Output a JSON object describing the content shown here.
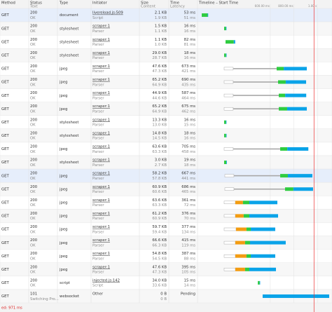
{
  "header": {
    "method": "Method",
    "status": "Status",
    "status_sub": "Text",
    "type": "Type",
    "initiator": "Initiator",
    "size": "Size",
    "size_sub": "Content",
    "time": "Time",
    "time_sub": "Latency",
    "timeline": "Timeline – Start Time"
  },
  "timeline": {
    "xlim": [
      0,
      1100
    ],
    "xticks": [
      {
        "value": 600,
        "label": "600.00 ms"
      },
      {
        "value": 800,
        "label": "800.00 ms"
      },
      {
        "value": 1000,
        "label": "1.00 s"
      }
    ],
    "colors": [
      "#ffffff",
      "#a8a8a8",
      "#f39c12",
      "#2ecc40",
      "#0aa3e8"
    ],
    "load_time": 971
  },
  "rows": [
    {
      "method": "GET",
      "status": "200",
      "text": "OK",
      "type": "document",
      "initiator": "livereload.js:509",
      "initiator_sub": "Script",
      "size": "2.1 KB",
      "content": "1.9 KB",
      "time": "53 ms",
      "latency": "51 ms",
      "timing": [
        18,
        0,
        0,
        0,
        50,
        3
      ],
      "selected": true
    },
    {
      "method": "GET",
      "status": "200",
      "text": "OK",
      "type": "stylesheet",
      "initiator": "scraper:1",
      "initiator_sub": "Parser",
      "size": "1.5 KB",
      "content": "1.1 KB",
      "time": "16 ms",
      "latency": "16 ms",
      "timing": [
        208,
        0,
        0,
        0,
        15,
        1
      ]
    },
    {
      "method": "GET",
      "status": "200",
      "text": "OK",
      "type": "stylesheet",
      "initiator": "scraper:1",
      "initiator_sub": "Parser",
      "size": "1.1 KB",
      "content": "1.0 KB",
      "time": "82 ms",
      "latency": "81 ms",
      "timing": [
        220,
        0,
        0,
        0,
        70,
        12
      ]
    },
    {
      "method": "GET",
      "status": "200",
      "text": "OK",
      "type": "stylesheet",
      "initiator": "scraper:1",
      "initiator_sub": "Parser",
      "size": "29.0 KB",
      "content": "28.7 KB",
      "time": "18 ms",
      "latency": "16 ms",
      "timing": [
        208,
        0,
        0,
        0,
        16,
        2
      ]
    },
    {
      "method": "GET",
      "status": "200",
      "text": "OK",
      "type": "jpeg",
      "initiator": "scraper:1",
      "initiator_sub": "Parser",
      "size": "47.6 KB",
      "content": "47.3 KB",
      "time": "673 ms",
      "latency": "421 ms",
      "timing": [
        208,
        77,
        369,
        0,
        60,
        196
      ]
    },
    {
      "method": "GET",
      "status": "200",
      "text": "OK",
      "type": "jpeg",
      "initiator": "scraper:1",
      "initiator_sub": "Parser",
      "size": "65.2 KB",
      "content": "64.9 KB",
      "time": "690 ms",
      "latency": "435 ms",
      "timing": [
        208,
        77,
        381,
        0,
        65,
        173
      ]
    },
    {
      "method": "GET",
      "status": "200",
      "text": "OK",
      "type": "jpeg",
      "initiator": "scraper:1",
      "initiator_sub": "Parser",
      "size": "44.9 KB",
      "content": "44.6 KB",
      "time": "587 ms",
      "latency": "464 ms",
      "timing": [
        208,
        77,
        387,
        0,
        54,
        179
      ]
    },
    {
      "method": "GET",
      "status": "200",
      "text": "OK",
      "type": "jpeg",
      "initiator": "scraper:1",
      "initiator_sub": "Parser",
      "size": "65.2 KB",
      "content": "64.9 KB",
      "time": "675 ms",
      "latency": "462 ms",
      "timing": [
        208,
        77,
        387,
        0,
        71,
        167
      ]
    },
    {
      "method": "GET",
      "status": "200",
      "text": "OK",
      "type": "stylesheet",
      "initiator": "scraper:1",
      "initiator_sub": "Parser",
      "size": "13.3 KB",
      "content": "13.0 KB",
      "time": "16 ms",
      "latency": "15 ms",
      "timing": [
        208,
        0,
        0,
        0,
        15,
        1
      ]
    },
    {
      "method": "GET",
      "status": "200",
      "text": "OK",
      "type": "stylesheet",
      "initiator": "scraper:1",
      "initiator_sub": "Parser",
      "size": "14.8 KB",
      "content": "14.5 KB",
      "time": "18 ms",
      "latency": "16 ms",
      "timing": [
        208,
        0,
        0,
        0,
        16,
        2
      ]
    },
    {
      "method": "GET",
      "status": "200",
      "text": "OK",
      "type": "jpeg",
      "initiator": "scraper:1",
      "initiator_sub": "Parser",
      "size": "63.6 KB",
      "content": "63.3 KB",
      "time": "705 ms",
      "latency": "458 ms",
      "timing": [
        208,
        77,
        399,
        0,
        60,
        179
      ]
    },
    {
      "method": "GET",
      "status": "200",
      "text": "OK",
      "type": "stylesheet",
      "initiator": "scraper:1",
      "initiator_sub": "Parser",
      "size": "3.0 KB",
      "content": "2.7 KB",
      "time": "19 ms",
      "latency": "18 ms",
      "timing": [
        208,
        0,
        0,
        0,
        18,
        1
      ]
    },
    {
      "method": "GET",
      "status": "200",
      "text": "OK",
      "type": "jpeg",
      "initiator": "scraper:1",
      "initiator_sub": "Parser",
      "size": "58.2 KB",
      "content": "57.8 KB",
      "time": "667 ms",
      "latency": "441 ms",
      "timing": [
        214,
        77,
        393,
        0,
        65,
        208
      ],
      "selected": true
    },
    {
      "method": "GET",
      "status": "200",
      "text": "OK",
      "type": "jpeg",
      "initiator": "scraper:1",
      "initiator_sub": "Parser",
      "size": "60.9 KB",
      "content": "60.6 KB",
      "time": "686 ms",
      "latency": "465 ms",
      "timing": [
        214,
        77,
        434,
        0,
        71,
        167
      ]
    },
    {
      "method": "GET",
      "status": "200",
      "text": "OK",
      "type": "jpeg",
      "initiator": "scraper:1",
      "initiator_sub": "Parser",
      "size": "63.6 KB",
      "content": "63.3 KB",
      "time": "361 ms",
      "latency": "72 ms",
      "timing": [
        208,
        95,
        0,
        65,
        54,
        238
      ]
    },
    {
      "method": "GET",
      "status": "200",
      "text": "OK",
      "type": "jpeg",
      "initiator": "scraper:1",
      "initiator_sub": "Parser",
      "size": "61.2 KB",
      "content": "60.9 KB",
      "time": "376 ms",
      "latency": "70 ms",
      "timing": [
        208,
        95,
        0,
        71,
        48,
        244
      ]
    },
    {
      "method": "GET",
      "status": "200",
      "text": "OK",
      "type": "jpeg",
      "initiator": "scraper:1",
      "initiator_sub": "Parser",
      "size": "59.7 KB",
      "content": "59.4 KB",
      "time": "377 ms",
      "latency": "134 ms",
      "timing": [
        208,
        101,
        0,
        89,
        36,
        208
      ]
    },
    {
      "method": "GET",
      "status": "200",
      "text": "OK",
      "type": "jpeg",
      "initiator": "scraper:1",
      "initiator_sub": "Parser",
      "size": "66.6 KB",
      "content": "66.3 KB",
      "time": "415 ms",
      "latency": "119 ms",
      "timing": [
        208,
        95,
        0,
        83,
        42,
        303
      ]
    },
    {
      "method": "GET",
      "status": "200",
      "text": "OK",
      "type": "jpeg",
      "initiator": "scraper:1",
      "initiator_sub": "Parser",
      "size": "54.8 KB",
      "content": "54.5 KB",
      "time": "387 ms",
      "latency": "88 ms",
      "timing": [
        208,
        95,
        0,
        95,
        36,
        208
      ]
    },
    {
      "method": "GET",
      "status": "200",
      "text": "OK",
      "type": "jpeg",
      "initiator": "scraper:1",
      "initiator_sub": "Parser",
      "size": "47.6 KB",
      "content": "47.3 KB",
      "time": "395 ms",
      "latency": "105 ms",
      "timing": [
        208,
        95,
        0,
        83,
        36,
        226
      ]
    },
    {
      "method": "GET",
      "status": "200",
      "text": "OK",
      "type": "script",
      "initiator": "injected.js:142",
      "initiator_sub": "Script",
      "size": "34.0 KB",
      "content": "33.6 KB",
      "time": "15 ms",
      "latency": "14 ms",
      "timing": [
        494,
        0,
        0,
        0,
        15,
        2
      ]
    },
    {
      "method": "GET",
      "status": "101",
      "text": "Switching Pro...",
      "type": "websocket",
      "initiator": "Other",
      "size": "0 B",
      "content": "0 B",
      "time": "Pending",
      "timing": [
        535,
        0,
        0,
        0,
        0,
        565
      ]
    }
  ],
  "footer": "ed: 971 ms"
}
